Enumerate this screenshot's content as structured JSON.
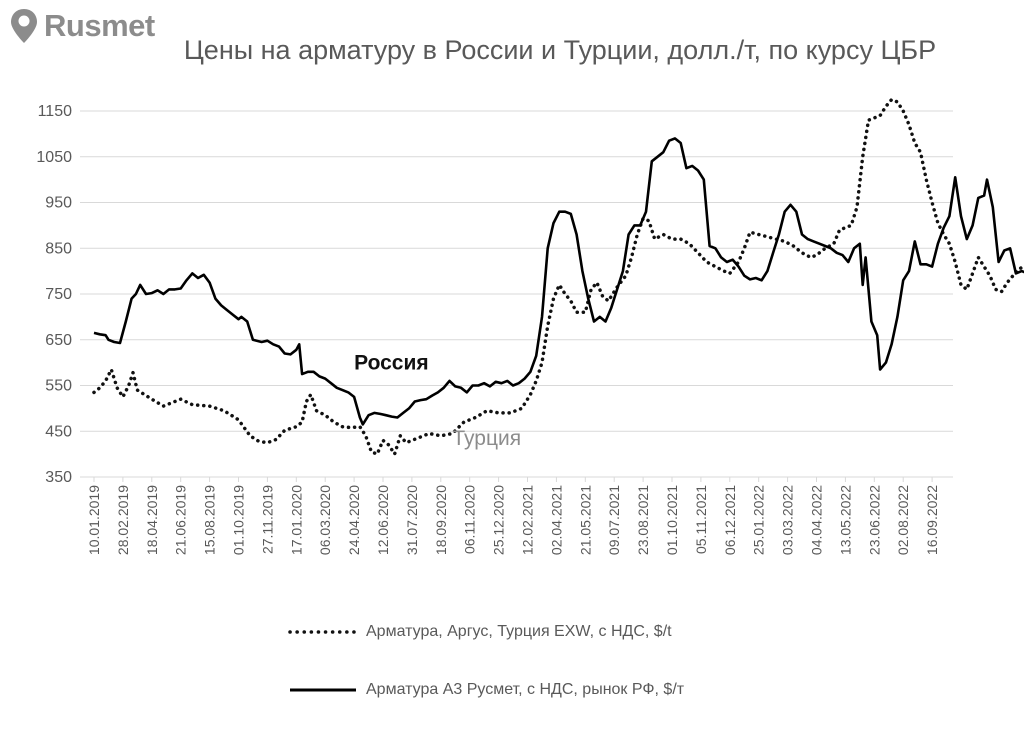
{
  "logo": {
    "text": "Rusmet"
  },
  "chart_data": {
    "type": "line",
    "title": "Цены на арматуру в России и Турции, долл./т, по курсу ЦБР",
    "ylim": [
      350,
      1150
    ],
    "yticks": [
      350,
      450,
      550,
      650,
      750,
      850,
      950,
      1050,
      1150
    ],
    "x_tick_labels": [
      "10.01.2019",
      "28.02.2019",
      "18.04.2019",
      "21.06.2019",
      "15.08.2019",
      "01.10.2019",
      "27.11.2019",
      "17.01.2020",
      "06.03.2020",
      "24.04.2020",
      "12.06.2020",
      "31.07.2020",
      "18.09.2020",
      "06.11.2020",
      "25.12.2020",
      "12.02.2021",
      "02.04.2021",
      "21.05.2021",
      "09.07.2021",
      "23.08.2021",
      "01.10.2021",
      "05.11.2021",
      "06.12.2021",
      "25.01.2022",
      "03.03.2022",
      "04.04.2022",
      "13.05.2022",
      "23.06.2022",
      "02.08.2022",
      "16.09.2022"
    ],
    "grid": "horizontal",
    "legend_position": "bottom",
    "annotations": [
      {
        "text": "Россия",
        "series": 1,
        "at": [
          9.0,
          585
        ]
      },
      {
        "text": "Турция",
        "series": 0,
        "at": [
          12.4,
          420
        ]
      }
    ],
    "series": [
      {
        "name": "Арматура, Аргус, Турция EXW, с НДС, $/t",
        "style": "dotted",
        "color": "#111111",
        "points": [
          [
            0.0,
            535
          ],
          [
            0.2,
            545
          ],
          [
            0.4,
            560
          ],
          [
            0.6,
            585
          ],
          [
            0.8,
            545
          ],
          [
            1.0,
            525
          ],
          [
            1.2,
            550
          ],
          [
            1.35,
            578
          ],
          [
            1.5,
            540
          ],
          [
            2.0,
            520
          ],
          [
            2.4,
            505
          ],
          [
            2.8,
            515
          ],
          [
            3.0,
            520
          ],
          [
            3.4,
            508
          ],
          [
            4.0,
            505
          ],
          [
            4.5,
            495
          ],
          [
            5.0,
            475
          ],
          [
            5.4,
            440
          ],
          [
            5.7,
            428
          ],
          [
            6.0,
            425
          ],
          [
            6.3,
            432
          ],
          [
            6.6,
            452
          ],
          [
            7.0,
            460
          ],
          [
            7.2,
            470
          ],
          [
            7.35,
            515
          ],
          [
            7.5,
            530
          ],
          [
            7.7,
            495
          ],
          [
            8.0,
            485
          ],
          [
            8.3,
            470
          ],
          [
            8.6,
            460
          ],
          [
            8.9,
            458
          ],
          [
            9.2,
            460
          ],
          [
            9.4,
            440
          ],
          [
            9.6,
            405
          ],
          [
            9.8,
            400
          ],
          [
            10.0,
            430
          ],
          [
            10.2,
            420
          ],
          [
            10.4,
            400
          ],
          [
            10.6,
            440
          ],
          [
            10.8,
            425
          ],
          [
            11.2,
            435
          ],
          [
            11.6,
            445
          ],
          [
            12.0,
            440
          ],
          [
            12.4,
            445
          ],
          [
            12.8,
            470
          ],
          [
            13.2,
            480
          ],
          [
            13.6,
            495
          ],
          [
            14.0,
            490
          ],
          [
            14.4,
            490
          ],
          [
            14.8,
            500
          ],
          [
            15.1,
            530
          ],
          [
            15.3,
            560
          ],
          [
            15.5,
            600
          ],
          [
            15.7,
            680
          ],
          [
            15.9,
            740
          ],
          [
            16.1,
            770
          ],
          [
            16.3,
            750
          ],
          [
            16.5,
            735
          ],
          [
            16.7,
            710
          ],
          [
            17.0,
            710
          ],
          [
            17.2,
            760
          ],
          [
            17.4,
            775
          ],
          [
            17.6,
            745
          ],
          [
            17.8,
            735
          ],
          [
            18.1,
            765
          ],
          [
            18.4,
            790
          ],
          [
            18.6,
            830
          ],
          [
            18.8,
            880
          ],
          [
            19.0,
            915
          ],
          [
            19.2,
            910
          ],
          [
            19.4,
            870
          ],
          [
            19.7,
            880
          ],
          [
            20.0,
            870
          ],
          [
            20.3,
            870
          ],
          [
            20.6,
            860
          ],
          [
            20.9,
            840
          ],
          [
            21.2,
            820
          ],
          [
            21.5,
            810
          ],
          [
            21.8,
            800
          ],
          [
            22.0,
            795
          ],
          [
            22.3,
            820
          ],
          [
            22.5,
            850
          ],
          [
            22.7,
            885
          ],
          [
            23.0,
            880
          ],
          [
            23.3,
            875
          ],
          [
            23.6,
            870
          ],
          [
            23.9,
            865
          ],
          [
            24.2,
            855
          ],
          [
            24.5,
            840
          ],
          [
            24.8,
            830
          ],
          [
            25.0,
            835
          ],
          [
            25.3,
            850
          ],
          [
            25.6,
            860
          ],
          [
            25.8,
            890
          ],
          [
            26.0,
            895
          ],
          [
            26.2,
            900
          ],
          [
            26.4,
            940
          ],
          [
            26.6,
            1050
          ],
          [
            26.8,
            1130
          ],
          [
            27.0,
            1135
          ],
          [
            27.2,
            1140
          ],
          [
            27.4,
            1160
          ],
          [
            27.6,
            1175
          ],
          [
            27.8,
            1170
          ],
          [
            28.0,
            1150
          ],
          [
            28.2,
            1120
          ],
          [
            28.4,
            1080
          ],
          [
            28.6,
            1060
          ],
          [
            28.8,
            1000
          ],
          [
            29.0,
            950
          ],
          [
            29.2,
            905
          ],
          [
            29.4,
            880
          ],
          [
            29.6,
            860
          ],
          [
            29.8,
            820
          ],
          [
            30.0,
            770
          ],
          [
            30.2,
            760
          ],
          [
            30.4,
            795
          ],
          [
            30.6,
            830
          ],
          [
            30.8,
            810
          ],
          [
            31.0,
            790
          ],
          [
            31.2,
            760
          ],
          [
            31.4,
            755
          ],
          [
            31.6,
            775
          ],
          [
            31.8,
            790
          ],
          [
            32.0,
            805
          ],
          [
            32.2,
            810
          ],
          [
            32.4,
            810
          ],
          [
            32.6,
            820
          ]
        ]
      },
      {
        "name": "Арматура А3 Русмет, с НДС, рынок РФ, $/т",
        "style": "solid",
        "color": "#000000",
        "points": [
          [
            0.0,
            665
          ],
          [
            0.2,
            662
          ],
          [
            0.4,
            660
          ],
          [
            0.5,
            650
          ],
          [
            0.7,
            645
          ],
          [
            0.9,
            643
          ],
          [
            1.1,
            690
          ],
          [
            1.3,
            740
          ],
          [
            1.45,
            750
          ],
          [
            1.6,
            770
          ],
          [
            1.8,
            750
          ],
          [
            2.0,
            752
          ],
          [
            2.2,
            758
          ],
          [
            2.4,
            750
          ],
          [
            2.6,
            760
          ],
          [
            2.8,
            760
          ],
          [
            3.0,
            762
          ],
          [
            3.2,
            780
          ],
          [
            3.4,
            795
          ],
          [
            3.6,
            785
          ],
          [
            3.8,
            792
          ],
          [
            4.0,
            775
          ],
          [
            4.2,
            740
          ],
          [
            4.4,
            725
          ],
          [
            4.6,
            715
          ],
          [
            4.8,
            705
          ],
          [
            5.0,
            695
          ],
          [
            5.1,
            700
          ],
          [
            5.3,
            690
          ],
          [
            5.5,
            650
          ],
          [
            5.8,
            645
          ],
          [
            6.0,
            648
          ],
          [
            6.2,
            640
          ],
          [
            6.4,
            635
          ],
          [
            6.6,
            620
          ],
          [
            6.8,
            618
          ],
          [
            7.0,
            628
          ],
          [
            7.1,
            640
          ],
          [
            7.2,
            575
          ],
          [
            7.4,
            580
          ],
          [
            7.6,
            580
          ],
          [
            7.8,
            570
          ],
          [
            8.0,
            565
          ],
          [
            8.2,
            555
          ],
          [
            8.4,
            545
          ],
          [
            8.6,
            540
          ],
          [
            8.8,
            535
          ],
          [
            9.0,
            525
          ],
          [
            9.2,
            480
          ],
          [
            9.3,
            465
          ],
          [
            9.5,
            485
          ],
          [
            9.7,
            490
          ],
          [
            9.9,
            488
          ],
          [
            10.1,
            485
          ],
          [
            10.3,
            482
          ],
          [
            10.5,
            480
          ],
          [
            10.7,
            490
          ],
          [
            10.9,
            500
          ],
          [
            11.1,
            515
          ],
          [
            11.3,
            518
          ],
          [
            11.5,
            520
          ],
          [
            11.7,
            528
          ],
          [
            11.9,
            535
          ],
          [
            12.1,
            545
          ],
          [
            12.3,
            560
          ],
          [
            12.5,
            548
          ],
          [
            12.7,
            545
          ],
          [
            12.9,
            535
          ],
          [
            13.1,
            550
          ],
          [
            13.3,
            550
          ],
          [
            13.5,
            555
          ],
          [
            13.7,
            548
          ],
          [
            13.9,
            558
          ],
          [
            14.1,
            555
          ],
          [
            14.3,
            560
          ],
          [
            14.5,
            550
          ],
          [
            14.7,
            555
          ],
          [
            14.9,
            565
          ],
          [
            15.1,
            580
          ],
          [
            15.3,
            615
          ],
          [
            15.5,
            700
          ],
          [
            15.7,
            850
          ],
          [
            15.9,
            905
          ],
          [
            16.1,
            930
          ],
          [
            16.3,
            930
          ],
          [
            16.5,
            925
          ],
          [
            16.7,
            880
          ],
          [
            16.9,
            800
          ],
          [
            17.1,
            740
          ],
          [
            17.3,
            690
          ],
          [
            17.5,
            700
          ],
          [
            17.7,
            690
          ],
          [
            17.9,
            720
          ],
          [
            18.1,
            760
          ],
          [
            18.3,
            800
          ],
          [
            18.5,
            880
          ],
          [
            18.7,
            900
          ],
          [
            18.9,
            900
          ],
          [
            19.1,
            930
          ],
          [
            19.3,
            1040
          ],
          [
            19.5,
            1050
          ],
          [
            19.7,
            1060
          ],
          [
            19.9,
            1085
          ],
          [
            20.1,
            1090
          ],
          [
            20.3,
            1080
          ],
          [
            20.5,
            1025
          ],
          [
            20.7,
            1030
          ],
          [
            20.9,
            1020
          ],
          [
            21.1,
            1000
          ],
          [
            21.3,
            855
          ],
          [
            21.5,
            850
          ],
          [
            21.7,
            830
          ],
          [
            21.9,
            820
          ],
          [
            22.1,
            825
          ],
          [
            22.3,
            810
          ],
          [
            22.5,
            790
          ],
          [
            22.7,
            782
          ],
          [
            22.9,
            785
          ],
          [
            23.1,
            780
          ],
          [
            23.3,
            800
          ],
          [
            23.5,
            840
          ],
          [
            23.7,
            880
          ],
          [
            23.9,
            930
          ],
          [
            24.1,
            945
          ],
          [
            24.3,
            930
          ],
          [
            24.5,
            880
          ],
          [
            24.7,
            870
          ],
          [
            24.9,
            865
          ],
          [
            25.1,
            860
          ],
          [
            25.3,
            855
          ],
          [
            25.5,
            850
          ],
          [
            25.7,
            840
          ],
          [
            25.9,
            835
          ],
          [
            26.1,
            820
          ],
          [
            26.3,
            850
          ],
          [
            26.5,
            860
          ],
          [
            26.6,
            770
          ],
          [
            26.7,
            830
          ],
          [
            26.9,
            690
          ],
          [
            27.1,
            660
          ],
          [
            27.2,
            585
          ],
          [
            27.4,
            600
          ],
          [
            27.6,
            640
          ],
          [
            27.8,
            700
          ],
          [
            28.0,
            780
          ],
          [
            28.2,
            800
          ],
          [
            28.4,
            865
          ],
          [
            28.6,
            815
          ],
          [
            28.8,
            815
          ],
          [
            29.0,
            810
          ],
          [
            29.2,
            860
          ],
          [
            29.4,
            895
          ],
          [
            29.6,
            920
          ],
          [
            29.8,
            1005
          ],
          [
            30.0,
            920
          ],
          [
            30.2,
            870
          ],
          [
            30.4,
            900
          ],
          [
            30.6,
            960
          ],
          [
            30.8,
            965
          ],
          [
            30.9,
            1000
          ],
          [
            31.1,
            940
          ],
          [
            31.3,
            820
          ],
          [
            31.5,
            845
          ],
          [
            31.7,
            850
          ],
          [
            31.9,
            795
          ],
          [
            32.1,
            800
          ],
          [
            32.3,
            795
          ],
          [
            32.5,
            815
          ],
          [
            32.7,
            800
          ],
          [
            32.9,
            845
          ],
          [
            33.1,
            835
          ],
          [
            33.3,
            850
          ],
          [
            33.5,
            815
          ],
          [
            33.7,
            840
          ],
          [
            33.9,
            790
          ]
        ]
      }
    ]
  }
}
